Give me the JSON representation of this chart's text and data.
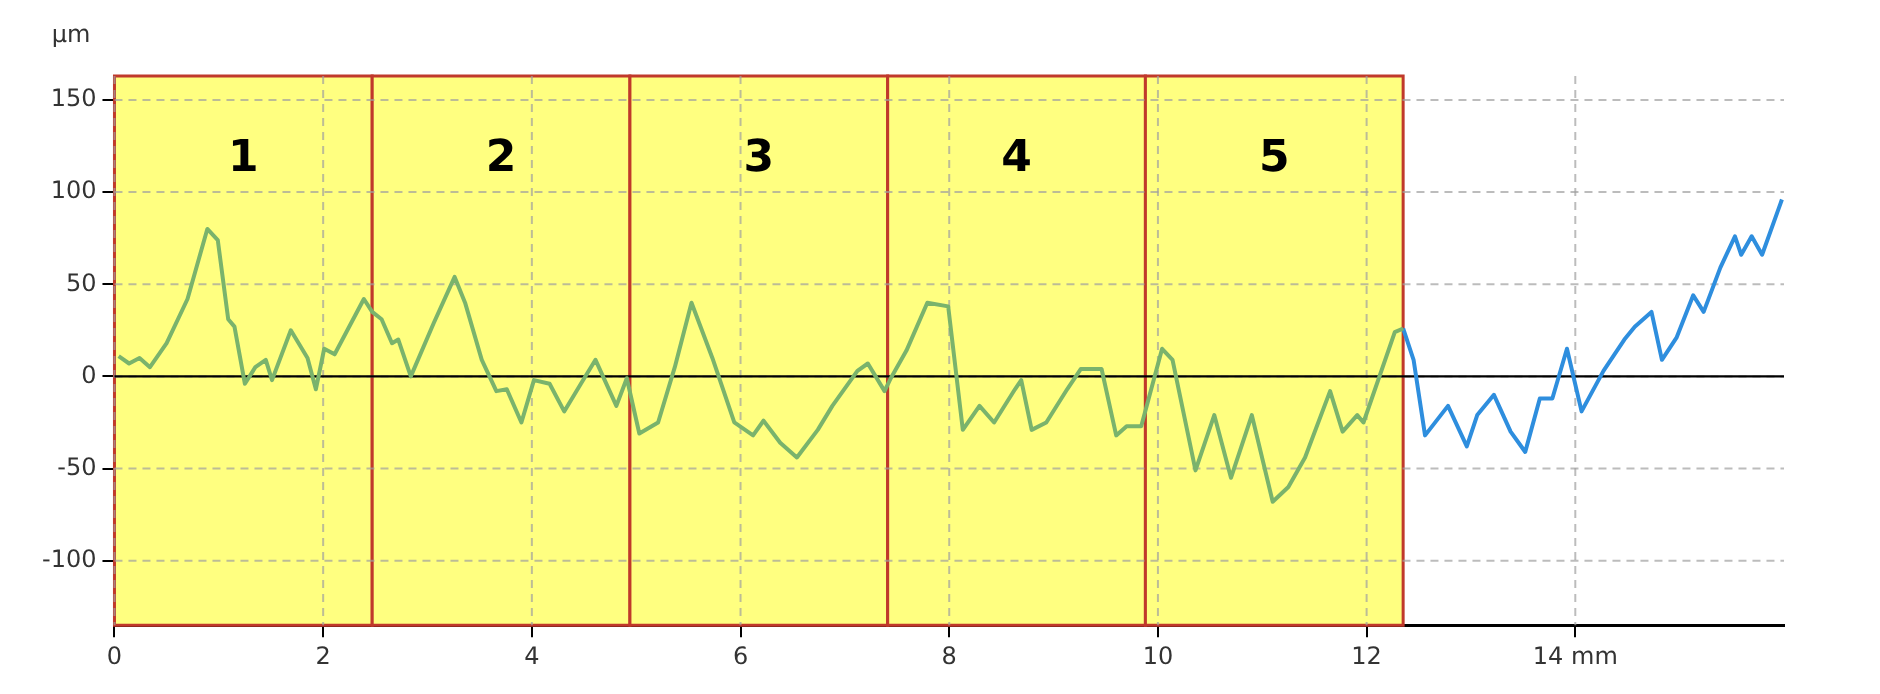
{
  "chart_data": {
    "type": "line",
    "ylabel": "µm",
    "xlim": [
      0,
      16
    ],
    "ylim": [
      -135,
      163
    ],
    "xticks": [
      0,
      2,
      4,
      6,
      8,
      10,
      12,
      {
        "value": 14,
        "label": "14 mm"
      }
    ],
    "yticks": [
      -100,
      -50,
      0,
      50,
      100,
      150
    ],
    "grid": true,
    "legend": false,
    "marker": "none",
    "line_style": "solid",
    "ref_lines": [
      {
        "axis": "y",
        "value": 0,
        "color": "#000000"
      }
    ],
    "bands": [
      {
        "axis": "x",
        "from": 0,
        "to": 2.47,
        "label": "1",
        "color": "#ffff80"
      },
      {
        "axis": "x",
        "from": 2.47,
        "to": 4.94,
        "label": "2",
        "color": "#ffff80"
      },
      {
        "axis": "x",
        "from": 4.94,
        "to": 7.41,
        "label": "3",
        "color": "#ffff80"
      },
      {
        "axis": "x",
        "from": 7.41,
        "to": 9.88,
        "label": "4",
        "color": "#ffff80"
      },
      {
        "axis": "x",
        "from": 9.88,
        "to": 12.35,
        "label": "5",
        "color": "#ffff80"
      }
    ],
    "series": [
      {
        "color": "#7ab36c",
        "x": [
          0.04,
          0.14,
          0.24,
          0.34,
          0.5,
          0.7,
          0.89,
          0.99,
          1.09,
          1.15,
          1.25,
          1.35,
          1.45,
          1.51,
          1.69,
          1.85,
          1.93,
          2.01,
          2.11,
          2.39,
          2.47,
          2.56,
          2.66,
          2.72,
          2.84,
          3.06,
          3.26,
          3.36,
          3.52,
          3.66,
          3.76,
          3.9,
          4.02,
          4.17,
          4.31,
          4.47,
          4.61,
          4.81,
          4.91,
          5.03,
          5.21,
          5.37,
          5.53,
          5.73,
          5.94,
          6.12,
          6.22,
          6.38,
          6.54,
          6.74,
          6.88,
          7.12,
          7.22,
          7.38,
          7.44,
          7.59,
          7.79,
          7.99,
          8.13,
          8.29,
          8.43,
          8.63,
          8.69,
          8.79,
          8.93,
          9.13,
          9.26,
          9.46,
          9.6,
          9.7,
          9.84,
          10.04,
          10.14,
          10.36,
          10.54,
          10.7,
          10.9,
          11.1,
          11.25,
          11.41,
          11.65,
          11.77,
          11.91,
          11.97,
          12.27,
          12.35
        ],
        "values": [
          11,
          7,
          10,
          5,
          18,
          42,
          80,
          74,
          31,
          27,
          -4,
          5,
          9,
          -2,
          25,
          10,
          -7,
          15,
          12,
          42,
          35,
          31,
          18,
          20,
          0,
          29,
          54,
          40,
          9,
          -8,
          -7,
          -25,
          -2,
          -4,
          -19,
          -4,
          9,
          -16,
          -1,
          -31,
          -25,
          5,
          40,
          10,
          -25,
          -32,
          -24,
          -36,
          -44,
          -29,
          -16,
          3,
          7,
          -8,
          -1,
          14,
          40,
          38,
          -29,
          -16,
          -25,
          -7,
          -2,
          -29,
          -25,
          -7,
          4,
          4,
          -32,
          -27,
          -27,
          15,
          9,
          -51,
          -21,
          -55,
          -21,
          -68,
          -60,
          -44,
          -8,
          -30,
          -21,
          -25,
          24,
          26
        ]
      },
      {
        "color": "#2e8ede",
        "x": [
          12.35,
          12.45,
          12.56,
          12.78,
          12.96,
          13.06,
          13.22,
          13.38,
          13.52,
          13.66,
          13.78,
          13.92,
          14.06,
          14.27,
          14.47,
          14.57,
          14.73,
          14.83,
          14.97,
          15.13,
          15.23,
          15.39,
          15.53,
          15.59,
          15.69,
          15.79,
          15.98
        ],
        "values": [
          26,
          9,
          -32,
          -16,
          -38,
          -21,
          -10,
          -30,
          -41,
          -12,
          -12,
          15,
          -19,
          3,
          20,
          27,
          35,
          9,
          21,
          44,
          35,
          59,
          76,
          66,
          76,
          66,
          96
        ]
      }
    ]
  }
}
